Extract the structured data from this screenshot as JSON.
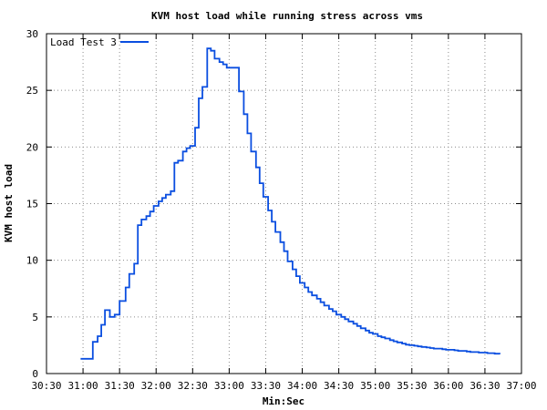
{
  "chart_data": {
    "type": "line",
    "title": "KVM host load while running stress across vms",
    "xlabel": "Min:Sec",
    "ylabel": "KVM host load",
    "xlim": [
      "30:30",
      "37:00"
    ],
    "ylim": [
      0,
      30
    ],
    "x_ticks": [
      "30:30",
      "31:00",
      "31:30",
      "32:00",
      "32:30",
      "33:00",
      "33:30",
      "34:00",
      "34:30",
      "35:00",
      "35:30",
      "36:00",
      "36:30",
      "37:00"
    ],
    "y_ticks": [
      "0",
      "5",
      "10",
      "15",
      "20",
      "25",
      "30"
    ],
    "grid": true,
    "legend_position": "top-left",
    "series": [
      {
        "name": "Load Test 3",
        "color": "#0a4ee0",
        "step": true,
        "x": [
          "30:58",
          "31:05",
          "31:08",
          "31:12",
          "31:15",
          "31:18",
          "31:22",
          "31:26",
          "31:30",
          "31:35",
          "31:38",
          "31:42",
          "31:45",
          "31:48",
          "31:52",
          "31:55",
          "31:58",
          "32:02",
          "32:05",
          "32:08",
          "32:12",
          "32:15",
          "32:18",
          "32:22",
          "32:25",
          "32:28",
          "32:32",
          "32:35",
          "32:38",
          "32:42",
          "32:45",
          "32:48",
          "32:52",
          "32:55",
          "32:58",
          "33:02",
          "33:05",
          "33:08",
          "33:12",
          "33:15",
          "33:18",
          "33:22",
          "33:25",
          "33:28",
          "33:32",
          "33:35",
          "33:38",
          "33:42",
          "33:45",
          "33:48",
          "33:52",
          "33:55",
          "33:58",
          "34:02",
          "34:05",
          "34:08",
          "34:12",
          "34:15",
          "34:18",
          "34:22",
          "34:25",
          "34:28",
          "34:32",
          "34:35",
          "34:38",
          "34:42",
          "34:45",
          "34:48",
          "34:52",
          "34:55",
          "34:58",
          "35:02",
          "35:05",
          "35:08",
          "35:12",
          "35:15",
          "35:18",
          "35:22",
          "35:25",
          "35:28",
          "35:32",
          "35:35",
          "35:38",
          "35:42",
          "35:45",
          "35:48",
          "35:52",
          "35:55",
          "35:58",
          "36:02",
          "36:05",
          "36:08",
          "36:12",
          "36:15",
          "36:18",
          "36:22",
          "36:25",
          "36:28",
          "36:32",
          "36:35",
          "36:38",
          "36:42"
        ],
        "y": [
          1.3,
          1.3,
          2.8,
          3.3,
          4.3,
          5.6,
          5.0,
          5.2,
          6.4,
          7.6,
          8.8,
          9.7,
          13.1,
          13.6,
          13.9,
          14.3,
          14.8,
          15.2,
          15.5,
          15.8,
          16.1,
          18.6,
          18.8,
          19.6,
          19.9,
          20.1,
          21.7,
          24.3,
          25.3,
          28.7,
          28.5,
          27.8,
          27.5,
          27.3,
          27.0,
          27.0,
          27.0,
          24.9,
          22.9,
          21.2,
          19.6,
          18.2,
          16.8,
          15.6,
          14.4,
          13.4,
          12.5,
          11.6,
          10.8,
          9.9,
          9.2,
          8.6,
          8.0,
          7.6,
          7.2,
          6.9,
          6.6,
          6.3,
          6.0,
          5.7,
          5.5,
          5.2,
          5.0,
          4.8,
          4.6,
          4.4,
          4.2,
          4.0,
          3.8,
          3.6,
          3.5,
          3.3,
          3.2,
          3.1,
          2.95,
          2.85,
          2.75,
          2.65,
          2.55,
          2.5,
          2.45,
          2.4,
          2.35,
          2.3,
          2.25,
          2.2,
          2.2,
          2.15,
          2.1,
          2.1,
          2.05,
          2.0,
          2.0,
          1.95,
          1.9,
          1.9,
          1.85,
          1.85,
          1.8,
          1.8,
          1.75,
          1.7
        ]
      }
    ]
  }
}
